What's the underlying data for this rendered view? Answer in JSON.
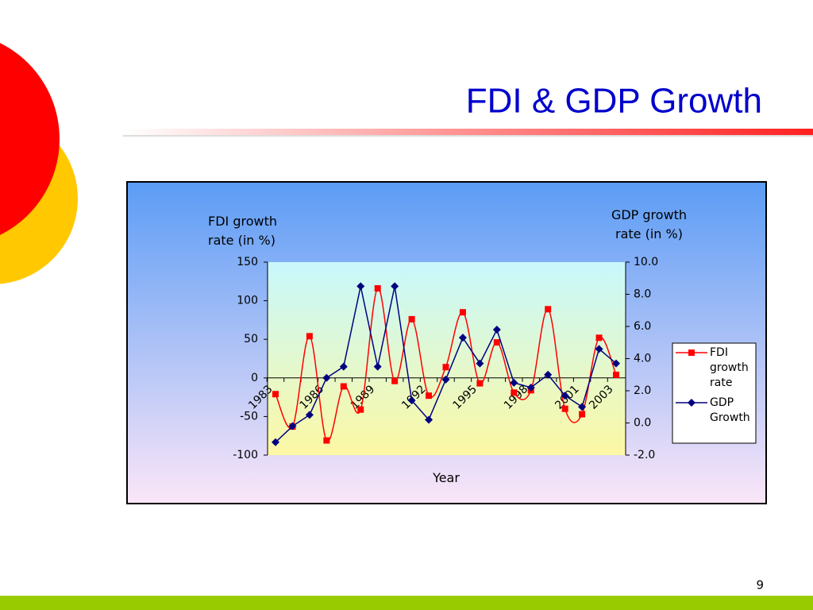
{
  "slide_title": "FDI & GDP Growth",
  "page_number": "9",
  "chart_data": {
    "type": "line",
    "y_label": "FDI growth rate (in %)",
    "y2_label": "GDP growth rate (in %)",
    "x_label": "Year",
    "categories": [
      "1983",
      null,
      null,
      "1986",
      null,
      null,
      "1989",
      null,
      null,
      "1992",
      null,
      null,
      "1995",
      null,
      null,
      "1998",
      null,
      null,
      "2001",
      null,
      "2003"
    ],
    "series": [
      {
        "name": "FDI growth rate",
        "color": "#ff0000",
        "marker": "square",
        "smooth": true,
        "values": [
          -21,
          -63,
          54,
          -81,
          -11,
          -41,
          116,
          -4,
          76,
          -23,
          14,
          85,
          -7,
          46,
          -19,
          -16,
          89,
          -40,
          -47,
          52,
          4
        ]
      },
      {
        "name": "GDP Growth",
        "color": "#000080",
        "marker": "diamond",
        "axis": "y2",
        "values": [
          -1.2,
          -0.2,
          0.5,
          2.8,
          3.5,
          8.5,
          3.5,
          8.5,
          1.4,
          0.2,
          2.7,
          5.3,
          3.7,
          5.8,
          2.5,
          2.2,
          3.0,
          1.7,
          1.0,
          4.6,
          3.7
        ]
      }
    ],
    "ylim": [
      -100,
      150
    ],
    "yticks": [
      -100,
      -50,
      0,
      50,
      100,
      150
    ],
    "y2lim": [
      -2,
      10
    ],
    "y2ticks": [
      {
        "value": -2,
        "label": "-2.0"
      },
      {
        "value": 0,
        "label": "0.0"
      },
      {
        "value": 2,
        "label": "2.0"
      },
      {
        "value": 4,
        "label": "4.0"
      },
      {
        "value": 6,
        "label": "6.0"
      },
      {
        "value": 8,
        "label": "8.0"
      },
      {
        "value": 10,
        "label": "10.0"
      }
    ],
    "legend": "right"
  }
}
